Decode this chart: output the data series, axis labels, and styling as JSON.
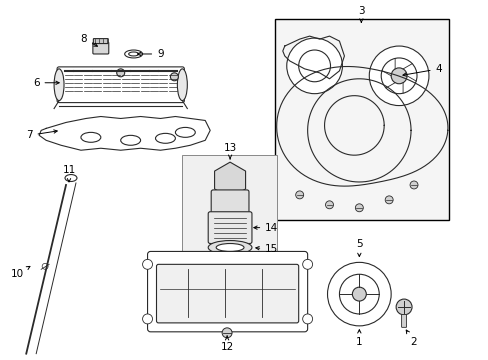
{
  "bg_color": "#ffffff",
  "fig_width": 4.89,
  "fig_height": 3.6,
  "dpi": 100,
  "line_color": "#2a2a2a",
  "label_color": "#000000",
  "label_fontsize": 7.5,
  "box_color": "#cccccc",
  "fill_light": "#f0f0f0",
  "fill_lighter": "#f8f8f8"
}
